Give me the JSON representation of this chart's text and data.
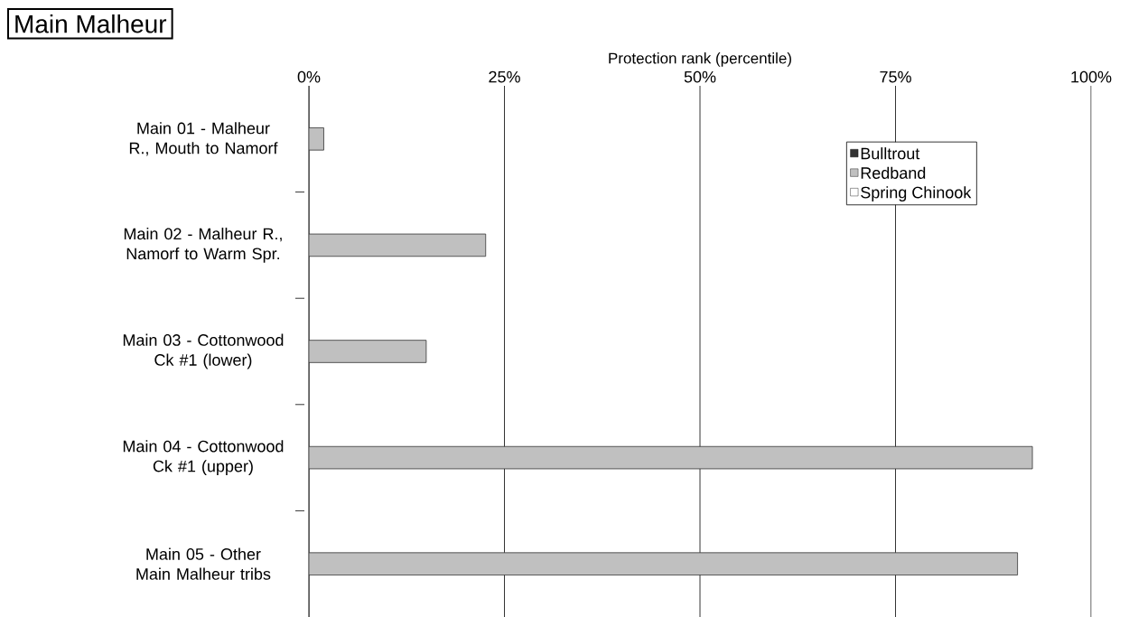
{
  "chart_data": {
    "type": "bar",
    "orientation": "horizontal",
    "title": "Main Malheur",
    "xlabel": "Protection rank (percentile)",
    "categories": [
      "Main 01 - Malheur R., Mouth to Namorf",
      "Main 02 - Malheur R., Namorf to Warm Spr.",
      "Main 03 - Cottonwood Ck #1 (lower)",
      "Main 04 - Cottonwood Ck #1 (upper)",
      "Main 05 - Other Main Malheur tribs"
    ],
    "series": [
      {
        "name": "Bulltrout",
        "color": "#333333",
        "values": [
          null,
          null,
          null,
          null,
          null
        ]
      },
      {
        "name": "Redband",
        "color": "#c0c0c0",
        "values": [
          1.9,
          22.6,
          15.0,
          92.5,
          90.6
        ]
      },
      {
        "name": "Spring Chinook",
        "color": "#ffffff",
        "values": [
          null,
          null,
          null,
          null,
          null
        ]
      }
    ],
    "xlim": [
      0,
      100
    ],
    "xticks": [
      {
        "value": 0,
        "label": "0%"
      },
      {
        "value": 25,
        "label": "25%"
      },
      {
        "value": 50,
        "label": "50%"
      },
      {
        "value": 75,
        "label": "75%"
      },
      {
        "value": 100,
        "label": "100%"
      }
    ],
    "grid": "x",
    "legend": "top right"
  }
}
